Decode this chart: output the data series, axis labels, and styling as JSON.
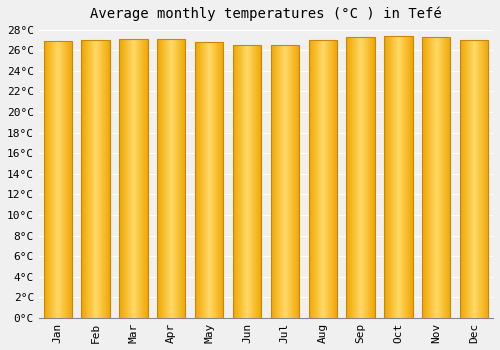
{
  "title": "Average monthly temperatures (°C ) in Tefé",
  "months": [
    "Jan",
    "Feb",
    "Mar",
    "Apr",
    "May",
    "Jun",
    "Jul",
    "Aug",
    "Sep",
    "Oct",
    "Nov",
    "Dec"
  ],
  "temperatures": [
    26.9,
    27.0,
    27.1,
    27.1,
    26.8,
    26.5,
    26.5,
    27.0,
    27.3,
    27.4,
    27.3,
    27.0
  ],
  "bar_color_center": "#FFD966",
  "bar_color_edge": "#F0A500",
  "bar_border_color": "#C8860A",
  "ylim": [
    0,
    28
  ],
  "ytick_step": 2,
  "background_color": "#f0f0f0",
  "grid_color": "#ffffff",
  "title_fontsize": 10,
  "tick_fontsize": 8,
  "bar_width": 0.75
}
